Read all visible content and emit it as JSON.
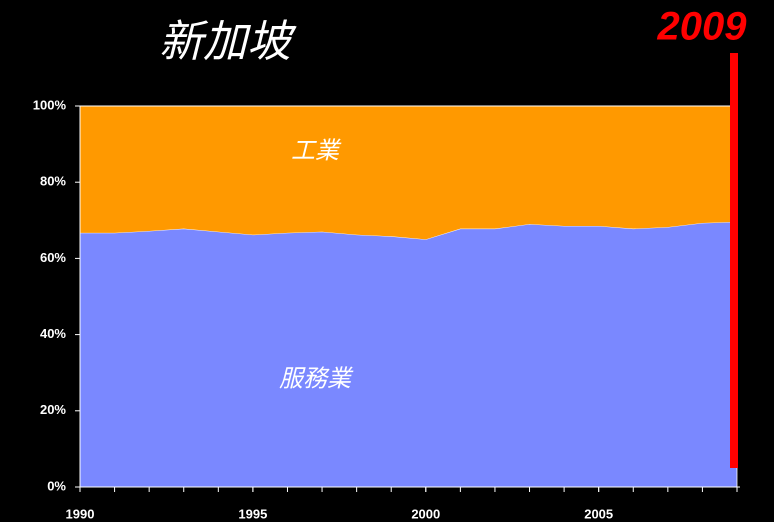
{
  "chart_data": {
    "type": "area",
    "stacked": true,
    "title": "新加坡",
    "x": [
      1990,
      1991,
      1992,
      1993,
      1994,
      1995,
      1996,
      1997,
      1998,
      1999,
      2000,
      2001,
      2002,
      2003,
      2004,
      2005,
      2006,
      2007,
      2008,
      2009
    ],
    "series": [
      {
        "name": "服務業",
        "color": "#7a88ff",
        "values": [
          66.7,
          66.7,
          67.2,
          67.8,
          67,
          66.2,
          66.7,
          67,
          66.2,
          65.8,
          65,
          67.8,
          67.8,
          69,
          68.5,
          68.5,
          67.8,
          68.2,
          69.3,
          69.6
        ]
      },
      {
        "name": "工業",
        "color": "#ff9900",
        "values": [
          33.3,
          33.3,
          32.8,
          32.2,
          33,
          33.8,
          33.3,
          33,
          33.8,
          34.2,
          35,
          32.2,
          32.2,
          31,
          31.5,
          31.5,
          32.2,
          31.8,
          30.7,
          30.4
        ]
      }
    ],
    "xlim": [
      1990,
      2009
    ],
    "xticks": [
      1990,
      1995,
      2000,
      2005
    ],
    "ylim": [
      0,
      100
    ],
    "yticks": [
      {
        "value": 0,
        "label": "0%"
      },
      {
        "value": 20,
        "label": "20%"
      },
      {
        "value": 40,
        "label": "40%"
      },
      {
        "value": 60,
        "label": "60%"
      },
      {
        "value": 80,
        "label": "80%"
      },
      {
        "value": 100,
        "label": "100%"
      }
    ],
    "annotations": [
      {
        "label": "2009",
        "x": 2009,
        "color": "#ff0000"
      }
    ]
  }
}
